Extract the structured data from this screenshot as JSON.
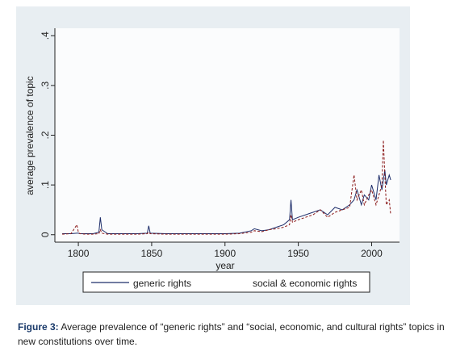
{
  "chart_data": {
    "type": "line",
    "xlabel": "year",
    "ylabel": "average prevalence of topic",
    "x": [
      1789,
      1795,
      1799,
      1800,
      1801,
      1805,
      1810,
      1814,
      1815,
      1816,
      1820,
      1830,
      1840,
      1847,
      1848,
      1849,
      1860,
      1870,
      1880,
      1890,
      1900,
      1910,
      1918,
      1920,
      1925,
      1930,
      1935,
      1940,
      1944,
      1945,
      1946,
      1950,
      1955,
      1960,
      1965,
      1970,
      1975,
      1980,
      1985,
      1988,
      1990,
      1993,
      1995,
      1998,
      2000,
      2003,
      2005,
      2007,
      2008,
      2009,
      2010,
      2012,
      2013
    ],
    "series": [
      {
        "name": "generic rights",
        "color": "#1f2f6b",
        "dash": false,
        "values": [
          0.002,
          0.002,
          0.003,
          0.003,
          0.002,
          0.002,
          0.002,
          0.005,
          0.035,
          0.01,
          0.002,
          0.002,
          0.002,
          0.003,
          0.018,
          0.003,
          0.002,
          0.002,
          0.002,
          0.002,
          0.002,
          0.003,
          0.008,
          0.012,
          0.008,
          0.01,
          0.015,
          0.02,
          0.03,
          0.07,
          0.03,
          0.035,
          0.04,
          0.045,
          0.05,
          0.04,
          0.055,
          0.05,
          0.06,
          0.07,
          0.09,
          0.06,
          0.08,
          0.07,
          0.1,
          0.07,
          0.12,
          0.09,
          0.11,
          0.13,
          0.1,
          0.12,
          0.11
        ]
      },
      {
        "name": "social & economic rights",
        "color": "#8b1a1a",
        "dash": true,
        "values": [
          0.001,
          0.002,
          0.02,
          0.005,
          0.002,
          0.001,
          0.001,
          0.002,
          0.01,
          0.003,
          0.001,
          0.001,
          0.001,
          0.002,
          0.005,
          0.002,
          0.001,
          0.001,
          0.001,
          0.001,
          0.001,
          0.002,
          0.005,
          0.008,
          0.006,
          0.01,
          0.012,
          0.015,
          0.02,
          0.04,
          0.025,
          0.03,
          0.035,
          0.04,
          0.05,
          0.035,
          0.045,
          0.05,
          0.055,
          0.12,
          0.07,
          0.09,
          0.06,
          0.08,
          0.09,
          0.06,
          0.08,
          0.1,
          0.19,
          0.12,
          0.06,
          0.07,
          0.04
        ]
      }
    ],
    "xlim": [
      1784,
      2019
    ],
    "xticks": [
      1800,
      1850,
      1900,
      1950,
      2000
    ],
    "ylim": [
      -0.015,
      0.415
    ],
    "yticks": [
      0,
      {
        "value": 0.1,
        "label": ".1"
      },
      {
        "value": 0.2,
        "label": ".2"
      },
      {
        "value": 0.3,
        "label": ".3"
      },
      {
        "value": 0.4,
        "label": ".4"
      }
    ]
  },
  "caption": {
    "label": "Figure 3:",
    "text": "Average prevalence of “generic rights” and “social, economic, and cultural rights” topics in new constitutions over time."
  }
}
